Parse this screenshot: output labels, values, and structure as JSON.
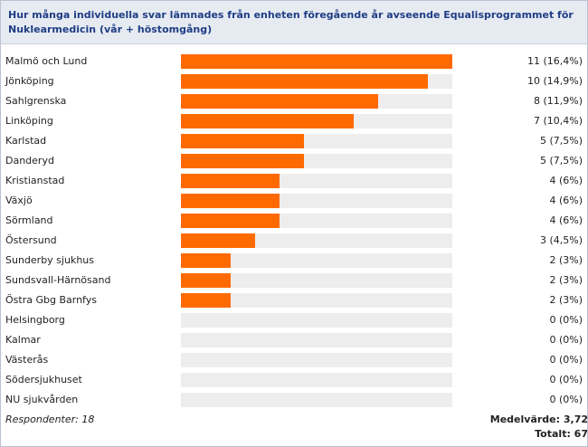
{
  "header": {
    "title": "Hur många individuella svar lämnades från enheten föregående år avseende Equalisprogrammet för Nuklearmedicin (vår + höstomgång)"
  },
  "colors": {
    "bar": "#ff6a00",
    "track": "#ededed",
    "header_bg": "#e6ebf2",
    "title": "#1f3d84"
  },
  "chart_data": {
    "type": "bar",
    "orientation": "horizontal",
    "title": "Hur många individuella svar lämnades från enheten föregående år avseende Equalisprogrammet för Nuklearmedicin (vår + höstomgång)",
    "xlim": [
      0,
      11
    ],
    "categories": [
      "Malmö och Lund",
      "Jönköping",
      "Sahlgrenska",
      "Linköping",
      "Karlstad",
      "Danderyd",
      "Kristianstad",
      "Växjö",
      "Sörmland",
      "Östersund",
      "Sunderby sjukhus",
      "Sundsvall-Härnösand",
      "Östra Gbg Barnfys",
      "Helsingborg",
      "Kalmar",
      "Västerås",
      "Södersjukhuset",
      "NU sjukvården"
    ],
    "values": [
      11,
      10,
      8,
      7,
      5,
      5,
      4,
      4,
      4,
      3,
      2,
      2,
      2,
      0,
      0,
      0,
      0,
      0
    ],
    "value_labels": [
      "11 (16,4%)",
      "10 (14,9%)",
      "8 (11,9%)",
      "7 (10,4%)",
      "5 (7,5%)",
      "5 (7,5%)",
      "4 (6%)",
      "4 (6%)",
      "4 (6%)",
      "3 (4,5%)",
      "2 (3%)",
      "2 (3%)",
      "2 (3%)",
      "0 (0%)",
      "0 (0%)",
      "0 (0%)",
      "0 (0%)",
      "0 (0%)"
    ]
  },
  "footer": {
    "respondents": "Respondenter: 18",
    "mean": "Medelvärde: 3,72",
    "total": "Totalt: 67"
  }
}
